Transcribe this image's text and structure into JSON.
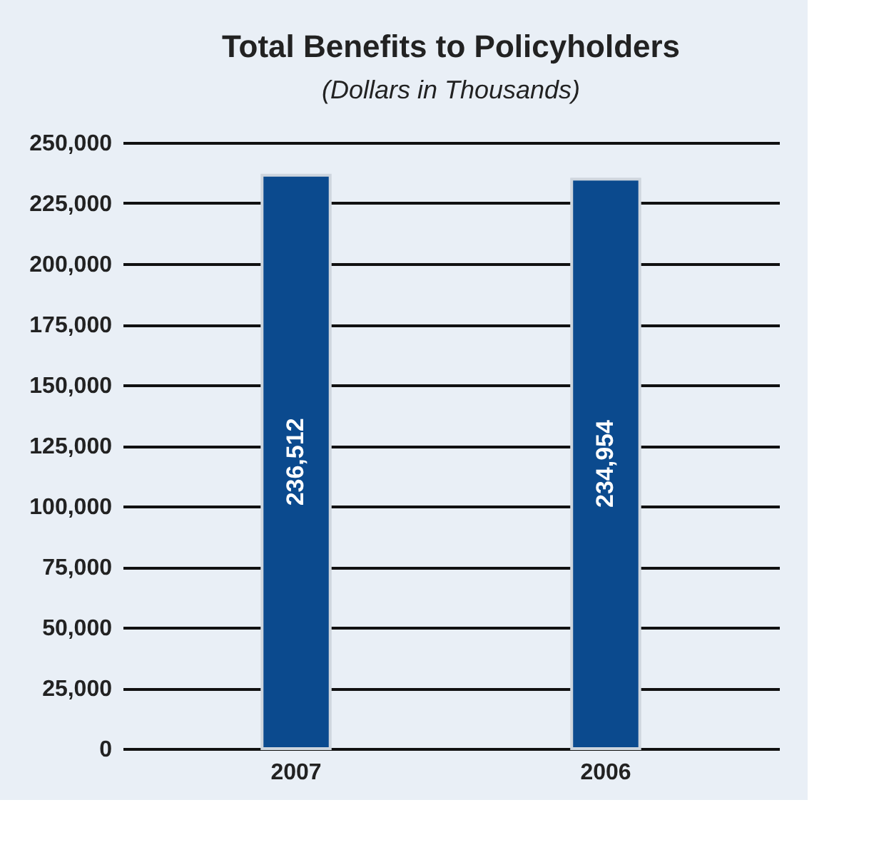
{
  "chart_data": {
    "type": "bar",
    "title": "Total Benefits to Policyholders",
    "subtitle": "(Dollars in Thousands)",
    "categories": [
      "2007",
      "2006"
    ],
    "values": [
      236512,
      234954
    ],
    "color": "#0b4a8e",
    "ylim": [
      0,
      250000
    ],
    "yticks": [
      0,
      {
        "value": 25000,
        "label": "25,000"
      },
      {
        "value": 50000,
        "label": "50,000"
      },
      {
        "value": 75000,
        "label": "75,000"
      },
      {
        "value": 100000,
        "label": "100,000"
      },
      {
        "value": 125000,
        "label": "125,000"
      },
      {
        "value": 150000,
        "label": "150,000"
      },
      {
        "value": 175000,
        "label": "175,000"
      },
      {
        "value": 200000,
        "label": "200,000"
      },
      {
        "value": 225000,
        "label": "225,000"
      },
      {
        "value": 250000,
        "label": "250,000"
      }
    ],
    "grid": "y",
    "value_labels": [
      "236,512",
      "234,954"
    ]
  }
}
